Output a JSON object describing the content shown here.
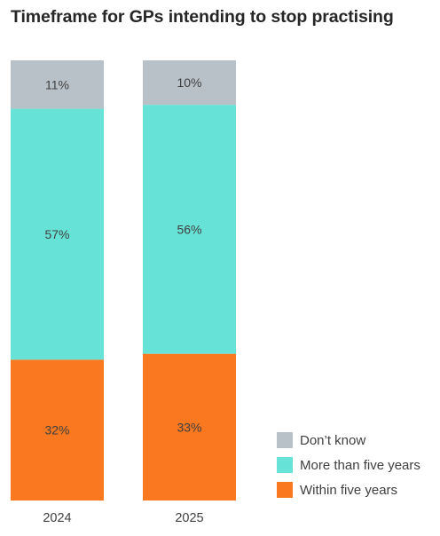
{
  "chart_data": {
    "type": "bar",
    "stacked": true,
    "percent": true,
    "title": "Timeframe for GPs intending to stop practising",
    "categories": [
      "2024",
      "2025"
    ],
    "series": [
      {
        "name": "Within five years",
        "values": [
          32,
          33
        ],
        "labels": [
          "32%",
          "33%"
        ],
        "color": "#FA7820"
      },
      {
        "name": "More than five years",
        "values": [
          57,
          56
        ],
        "labels": [
          "57%",
          "56%"
        ],
        "color": "#67E2D6"
      },
      {
        "name": "Don’t know",
        "values": [
          11,
          10
        ],
        "labels": [
          "11%",
          "10%"
        ],
        "color": "#B8C1C7"
      }
    ],
    "legend_order": [
      "Don’t know",
      "More than five years",
      "Within five years"
    ],
    "legend_position": "bottom-right",
    "xlabel": "",
    "ylabel": "",
    "ylim": [
      0,
      100
    ],
    "grid": false
  }
}
